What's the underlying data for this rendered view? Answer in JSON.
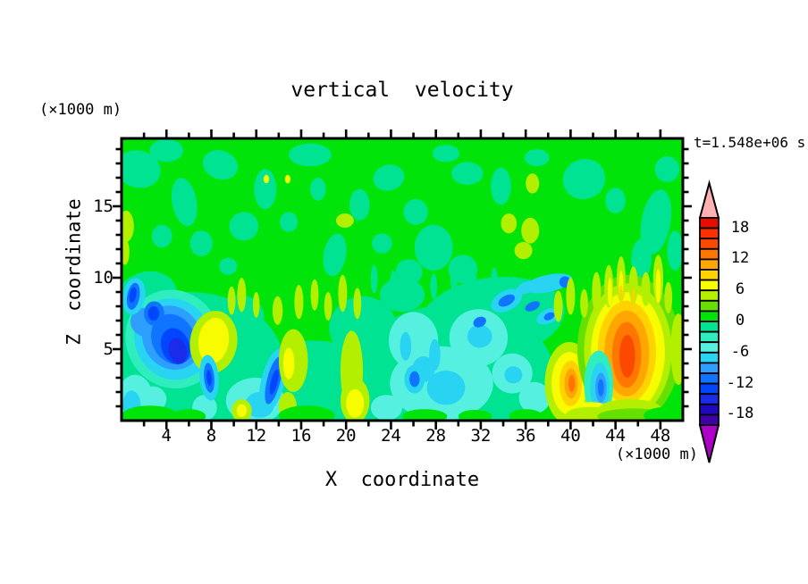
{
  "title": "vertical  velocity",
  "timestamp": "t=1.548e+06 s",
  "x_axis": {
    "label": "X  coordinate",
    "unit": "(×1000 m)",
    "range": [
      0,
      50
    ],
    "major_ticks": [
      4,
      8,
      12,
      16,
      20,
      24,
      28,
      32,
      36,
      40,
      44,
      48
    ],
    "minor_step": 2
  },
  "y_axis": {
    "label": "Z  coordinate",
    "unit": "(×1000 m)",
    "range": [
      0,
      19.75
    ],
    "major_ticks": [
      5,
      10,
      15
    ],
    "minor_step": 1
  },
  "colorbar": {
    "label_values": [
      18,
      12,
      6,
      0,
      -6,
      -12,
      -18
    ],
    "value_range": [
      -20,
      20
    ],
    "step": 2,
    "colors_top_to_bottom": [
      "#e60d00",
      "#ff3000",
      "#fb4a00",
      "#ff7600",
      "#ffa600",
      "#ffd200",
      "#f8fc00",
      "#b2ef00",
      "#66e000",
      "#00e40a",
      "#00e392",
      "#2fedbe",
      "#55f0e0",
      "#28d4f2",
      "#2f9fff",
      "#0f74ff",
      "#0046ff",
      "#1b2ce8",
      "#2008c0",
      "#3f00a8"
    ],
    "over_color": "#ffb0b0",
    "under_color": "#ae00c8"
  },
  "chart_data": {
    "type": "heatmap",
    "subtype": "filled-contour",
    "title": "vertical velocity",
    "xlabel": "X coordinate (×1000 m)",
    "ylabel": "Z coordinate (×1000 m)",
    "annotation": "t=1.548e+06 s",
    "xlim": [
      0,
      50
    ],
    "ylim": [
      0,
      19.75
    ],
    "contour_levels_min": -20,
    "contour_levels_max": 20,
    "contour_interval": 2,
    "legend_position": "right-colorbar",
    "grid": false,
    "features": [
      {
        "feature": "strong downdraft cluster",
        "x_range": [
          1,
          9
        ],
        "z_range": [
          3,
          9
        ],
        "min_w": -15
      },
      {
        "feature": "updraft cell",
        "x_range": [
          6.5,
          10
        ],
        "z_range": [
          3.5,
          7.5
        ],
        "max_w": 7
      },
      {
        "feature": "downdraft streak",
        "x_range": [
          7,
          8.5
        ],
        "z_range": [
          1.5,
          4.5
        ],
        "min_w": -11
      },
      {
        "feature": "downdraft streak",
        "x_range": [
          12.5,
          14.5
        ],
        "z_range": [
          0.5,
          5
        ],
        "min_w": -11
      },
      {
        "feature": "updraft cell",
        "x_range": [
          37.5,
          42
        ],
        "z_range": [
          0.5,
          5.5
        ],
        "max_w": 13
      },
      {
        "feature": "downdraft notch",
        "x_range": [
          41.5,
          43.5
        ],
        "z_range": [
          0.5,
          4.5
        ],
        "min_w": -10
      },
      {
        "feature": "strongest updraft cell",
        "x_range": [
          41,
          49.5
        ],
        "z_range": [
          0.5,
          10.5
        ],
        "max_w": 15
      },
      {
        "feature": "background field",
        "w_range": [
          -4,
          4
        ]
      }
    ],
    "palette": {
      "green": "#00e40a",
      "teal": "#00e392",
      "mint": "#2fedbe",
      "aqua": "#55f0e0",
      "cyan": "#28d4f2",
      "lblue": "#2f9fff",
      "blue": "#0f74ff",
      "blue2": "#0046ff",
      "dblue": "#1b2ce8",
      "green9": "#66e000",
      "chart": "#b2ef00",
      "yellow": "#f8fc00",
      "amber": "#ffd200",
      "orange": "#ffa600",
      "dorange": "#ff7600",
      "rorange": "#fb4a00"
    },
    "base_color_key": "green",
    "blobs": [
      [
        1.5,
        17.6,
        2.0,
        1.3,
        15,
        "teal"
      ],
      [
        4.0,
        18.9,
        1.5,
        0.8,
        0,
        "teal"
      ],
      [
        5.6,
        15.3,
        1.1,
        1.7,
        -10,
        "teal"
      ],
      [
        3.6,
        12.9,
        0.9,
        0.8,
        0,
        "teal"
      ],
      [
        8.8,
        17.9,
        1.6,
        1.0,
        20,
        "teal"
      ],
      [
        7.1,
        12.4,
        1.0,
        0.9,
        0,
        "teal"
      ],
      [
        10.9,
        13.6,
        1.3,
        1.0,
        0,
        "teal"
      ],
      [
        12.8,
        16.2,
        1.0,
        1.4,
        0,
        "teal"
      ],
      [
        16.8,
        18.6,
        1.9,
        0.8,
        0,
        "teal"
      ],
      [
        19.0,
        11.6,
        1.0,
        1.5,
        10,
        "teal"
      ],
      [
        21.2,
        15.1,
        0.9,
        1.1,
        0,
        "teal"
      ],
      [
        23.8,
        17.0,
        1.4,
        0.9,
        -15,
        "teal"
      ],
      [
        23.2,
        12.4,
        0.9,
        0.7,
        0,
        "teal"
      ],
      [
        27.8,
        12.1,
        1.7,
        1.6,
        0,
        "teal"
      ],
      [
        26.2,
        14.6,
        1.1,
        0.9,
        0,
        "teal"
      ],
      [
        25.6,
        10.4,
        1.2,
        0.9,
        0,
        "teal"
      ],
      [
        30.8,
        17.3,
        1.4,
        0.8,
        0,
        "teal"
      ],
      [
        33.8,
        16.4,
        0.9,
        1.3,
        0,
        "teal"
      ],
      [
        30.4,
        10.6,
        1.3,
        1.0,
        0,
        "teal"
      ],
      [
        37.0,
        18.4,
        1.1,
        0.6,
        0,
        "teal"
      ],
      [
        41.2,
        16.9,
        1.9,
        1.4,
        -20,
        "teal"
      ],
      [
        44.0,
        15.4,
        0.9,
        0.9,
        0,
        "teal"
      ],
      [
        47.6,
        13.9,
        1.3,
        2.3,
        10,
        "teal"
      ],
      [
        48.6,
        17.6,
        1.1,
        0.9,
        0,
        "teal"
      ],
      [
        46.3,
        11.3,
        0.9,
        1.4,
        0,
        "teal"
      ],
      [
        49.3,
        11.9,
        0.7,
        1.4,
        0,
        "teal"
      ],
      [
        14.9,
        13.9,
        0.8,
        0.7,
        0,
        "teal"
      ],
      [
        9.5,
        10.8,
        0.8,
        0.6,
        0,
        "teal"
      ],
      [
        17.5,
        16.2,
        0.7,
        0.8,
        0,
        "teal"
      ],
      [
        28.9,
        18.7,
        1.2,
        0.6,
        0,
        "teal"
      ],
      [
        0.4,
        13.6,
        0.7,
        1.1,
        0,
        "chart"
      ],
      [
        0.3,
        11.8,
        0.4,
        0.9,
        0,
        "chart"
      ],
      [
        19.9,
        14.0,
        0.8,
        0.5,
        0,
        "chart"
      ],
      [
        36.4,
        13.3,
        0.8,
        0.9,
        0,
        "chart"
      ],
      [
        36.6,
        16.6,
        0.6,
        0.7,
        0,
        "chart"
      ],
      [
        35.8,
        11.9,
        0.8,
        0.6,
        0,
        "chart"
      ],
      [
        34.5,
        13.8,
        0.7,
        0.7,
        0,
        "chart"
      ],
      [
        12.9,
        16.9,
        0.25,
        0.3,
        0,
        "yellow"
      ],
      [
        14.8,
        16.9,
        0.25,
        0.3,
        0,
        "yellow"
      ],
      [
        6.0,
        3.8,
        8.5,
        5.2,
        0,
        "teal"
      ],
      [
        17.0,
        2.2,
        7.0,
        3.4,
        0,
        "teal"
      ],
      [
        29.5,
        3.3,
        9.0,
        4.8,
        0,
        "teal"
      ],
      [
        33.0,
        7.2,
        6.5,
        2.8,
        -8,
        "teal"
      ],
      [
        2.2,
        8.6,
        2.8,
        1.8,
        -20,
        "teal"
      ],
      [
        21.5,
        6.5,
        3.0,
        2.2,
        0,
        "teal"
      ],
      [
        25.0,
        8.8,
        2.0,
        1.2,
        0,
        "teal"
      ],
      [
        10.5,
        7.2,
        2.2,
        1.6,
        0,
        "teal"
      ],
      [
        22.5,
        9.9,
        0.3,
        1.0,
        0,
        "teal"
      ],
      [
        24.2,
        9.5,
        0.3,
        1.0,
        0,
        "teal"
      ],
      [
        26.0,
        10.0,
        0.3,
        1.0,
        0,
        "teal"
      ],
      [
        27.8,
        9.4,
        0.3,
        0.9,
        0,
        "teal"
      ],
      [
        29.6,
        9.9,
        0.3,
        1.0,
        0,
        "teal"
      ],
      [
        31.4,
        9.4,
        0.3,
        0.9,
        0,
        "teal"
      ],
      [
        33.2,
        9.8,
        0.3,
        0.9,
        0,
        "teal"
      ],
      [
        35.0,
        9.3,
        0.3,
        0.8,
        0,
        "teal"
      ],
      [
        9.8,
        8.4,
        0.35,
        1.0,
        0,
        "chart"
      ],
      [
        10.7,
        8.8,
        0.4,
        1.2,
        0,
        "chart"
      ],
      [
        12.0,
        8.1,
        0.3,
        0.9,
        0,
        "chart"
      ],
      [
        13.9,
        7.7,
        0.45,
        1.0,
        0,
        "chart"
      ],
      [
        15.8,
        8.3,
        0.4,
        1.2,
        0,
        "chart"
      ],
      [
        17.2,
        8.8,
        0.35,
        1.1,
        0,
        "chart"
      ],
      [
        18.4,
        8.0,
        0.35,
        1.0,
        0,
        "chart"
      ],
      [
        19.7,
        8.9,
        0.4,
        1.3,
        0,
        "chart"
      ],
      [
        21.0,
        8.2,
        0.35,
        1.1,
        0,
        "chart"
      ],
      [
        28.5,
        2.6,
        4.6,
        2.6,
        0,
        "aqua"
      ],
      [
        31.8,
        5.8,
        2.6,
        2.0,
        0,
        "aqua"
      ],
      [
        26.0,
        5.6,
        2.2,
        2.0,
        0,
        "aqua"
      ],
      [
        11.9,
        1.4,
        2.6,
        1.6,
        0,
        "aqua"
      ],
      [
        1.2,
        1.5,
        1.6,
        1.7,
        0,
        "aqua"
      ],
      [
        34.8,
        3.3,
        1.8,
        1.4,
        0,
        "aqua"
      ],
      [
        2.8,
        1.5,
        1.2,
        0.9,
        0,
        "aqua"
      ],
      [
        7.4,
        0.9,
        1.1,
        0.9,
        0,
        "aqua"
      ],
      [
        23.6,
        0.9,
        1.4,
        0.9,
        0,
        "aqua"
      ],
      [
        36.8,
        1.6,
        1.4,
        1.1,
        0,
        "aqua"
      ],
      [
        28.9,
        2.3,
        1.7,
        1.2,
        0,
        "cyan"
      ],
      [
        26.9,
        3.6,
        1.0,
        0.9,
        0,
        "cyan"
      ],
      [
        12.3,
        1.1,
        1.3,
        0.9,
        0,
        "cyan"
      ],
      [
        0.9,
        1.1,
        0.8,
        1.0,
        0,
        "cyan"
      ],
      [
        31.9,
        5.9,
        1.1,
        0.8,
        0,
        "cyan"
      ],
      [
        34.9,
        3.2,
        0.8,
        0.6,
        0,
        "cyan"
      ],
      [
        25.3,
        5.2,
        0.5,
        1.0,
        0,
        "cyan"
      ],
      [
        27.9,
        4.6,
        0.5,
        1.1,
        0,
        "cyan"
      ],
      [
        26.1,
        2.9,
        0.9,
        1.0,
        0,
        "cyan"
      ],
      [
        26.1,
        2.9,
        0.45,
        0.55,
        0,
        "blue"
      ],
      [
        38.0,
        9.6,
        2.2,
        0.6,
        -12,
        "cyan"
      ],
      [
        34.3,
        8.4,
        1.5,
        0.7,
        -28,
        "cyan"
      ],
      [
        34.3,
        8.4,
        0.8,
        0.35,
        -28,
        "blue"
      ],
      [
        36.6,
        8.0,
        0.7,
        0.3,
        -25,
        "blue"
      ],
      [
        38.0,
        7.3,
        1.1,
        0.5,
        -25,
        "cyan"
      ],
      [
        38.1,
        7.3,
        0.5,
        0.25,
        -25,
        "blue"
      ],
      [
        39.5,
        9.7,
        0.5,
        0.4,
        0,
        "blue"
      ],
      [
        36.0,
        9.3,
        0.9,
        0.4,
        -25,
        "cyan"
      ],
      [
        31.9,
        6.9,
        0.6,
        0.35,
        -25,
        "blue"
      ],
      [
        4.6,
        5.7,
        4.2,
        3.5,
        -28,
        "mint"
      ],
      [
        4.6,
        5.7,
        3.4,
        2.9,
        -28,
        "cyan"
      ],
      [
        4.5,
        5.8,
        2.6,
        2.3,
        -28,
        "lblue"
      ],
      [
        2.0,
        6.9,
        1.2,
        1.0,
        -20,
        "lblue"
      ],
      [
        4.6,
        5.7,
        1.9,
        1.8,
        -25,
        "blue"
      ],
      [
        4.8,
        5.2,
        1.25,
        1.3,
        -20,
        "blue2"
      ],
      [
        5.0,
        4.9,
        0.8,
        0.9,
        -15,
        "dblue"
      ],
      [
        2.9,
        7.5,
        0.9,
        0.85,
        0,
        "blue"
      ],
      [
        2.85,
        7.5,
        0.5,
        0.5,
        0,
        "blue2"
      ],
      [
        1.1,
        8.7,
        1.0,
        1.3,
        10,
        "cyan"
      ],
      [
        1.05,
        8.7,
        0.55,
        0.95,
        10,
        "blue"
      ],
      [
        1.0,
        8.8,
        0.3,
        0.55,
        10,
        "blue2"
      ],
      [
        8.2,
        5.5,
        2.1,
        2.2,
        8,
        "chart"
      ],
      [
        8.2,
        5.6,
        1.35,
        1.6,
        8,
        "yellow"
      ],
      [
        7.8,
        3.0,
        0.85,
        1.6,
        -5,
        "cyan"
      ],
      [
        7.8,
        3.0,
        0.45,
        1.05,
        -5,
        "blue"
      ],
      [
        7.8,
        3.0,
        0.22,
        0.55,
        -5,
        "blue2"
      ],
      [
        10.7,
        0.7,
        0.9,
        0.8,
        0,
        "chart"
      ],
      [
        10.7,
        0.7,
        0.45,
        0.45,
        0,
        "yellow"
      ],
      [
        13.5,
        2.8,
        1.05,
        2.3,
        14,
        "cyan"
      ],
      [
        13.55,
        2.8,
        0.6,
        1.7,
        14,
        "blue"
      ],
      [
        13.6,
        2.7,
        0.3,
        0.9,
        14,
        "blue2"
      ],
      [
        15.3,
        4.2,
        1.3,
        2.2,
        0,
        "chart"
      ],
      [
        14.9,
        4.0,
        0.5,
        1.1,
        0,
        "yellow"
      ],
      [
        14.8,
        1.0,
        0.8,
        1.0,
        0,
        "chart"
      ],
      [
        20.5,
        3.5,
        1.0,
        2.8,
        0,
        "chart"
      ],
      [
        20.8,
        1.4,
        1.3,
        1.6,
        0,
        "chart"
      ],
      [
        20.8,
        1.2,
        0.8,
        1.0,
        0,
        "yellow"
      ],
      [
        39.9,
        2.6,
        2.2,
        2.9,
        0,
        "chart"
      ],
      [
        39.9,
        2.6,
        1.6,
        2.2,
        0,
        "yellow"
      ],
      [
        40.0,
        2.6,
        1.0,
        1.6,
        0,
        "amber"
      ],
      [
        40.05,
        2.6,
        0.6,
        1.05,
        0,
        "orange"
      ],
      [
        40.1,
        2.6,
        0.3,
        0.6,
        0,
        "dorange"
      ],
      [
        45.2,
        5.0,
        4.6,
        5.2,
        0,
        "green9"
      ],
      [
        45.1,
        4.9,
        3.9,
        4.7,
        0,
        "chart"
      ],
      [
        45.1,
        4.8,
        3.3,
        4.2,
        0,
        "yellow"
      ],
      [
        45.0,
        4.8,
        2.6,
        3.6,
        0,
        "amber"
      ],
      [
        45.0,
        4.7,
        2.0,
        3.0,
        0,
        "orange"
      ],
      [
        45.0,
        4.6,
        1.3,
        2.3,
        0,
        "dorange"
      ],
      [
        45.05,
        4.5,
        0.7,
        1.5,
        0,
        "rorange"
      ],
      [
        42.5,
        2.5,
        1.3,
        2.4,
        0,
        "mint"
      ],
      [
        42.6,
        2.3,
        0.85,
        1.75,
        0,
        "cyan"
      ],
      [
        42.7,
        2.3,
        0.5,
        1.05,
        0,
        "lblue"
      ],
      [
        42.7,
        2.3,
        0.27,
        0.6,
        0,
        "blue"
      ],
      [
        41.8,
        0.7,
        1.8,
        0.6,
        0,
        "yellow"
      ],
      [
        41.8,
        0.45,
        2.2,
        0.5,
        0,
        "chart"
      ],
      [
        45.3,
        0.8,
        2.8,
        0.7,
        0,
        "chart"
      ],
      [
        45.6,
        0.3,
        3.2,
        0.55,
        0,
        "green9"
      ],
      [
        38.9,
        8.0,
        0.4,
        1.1,
        0,
        "chart"
      ],
      [
        40.0,
        8.7,
        0.4,
        1.3,
        0,
        "chart"
      ],
      [
        41.2,
        8.2,
        0.35,
        1.0,
        0,
        "chart"
      ],
      [
        42.3,
        9.0,
        0.4,
        1.4,
        0,
        "chart"
      ],
      [
        43.4,
        9.4,
        0.4,
        1.5,
        0,
        "chart"
      ],
      [
        44.5,
        9.9,
        0.4,
        1.6,
        0,
        "chart"
      ],
      [
        45.6,
        9.5,
        0.4,
        1.3,
        0,
        "chart"
      ],
      [
        46.7,
        9.2,
        0.4,
        1.2,
        0,
        "chart"
      ],
      [
        47.8,
        9.9,
        0.45,
        1.7,
        0,
        "chart"
      ],
      [
        48.7,
        8.6,
        0.35,
        1.1,
        0,
        "chart"
      ],
      [
        43.5,
        9.0,
        0.2,
        1.0,
        0,
        "yellow"
      ],
      [
        44.5,
        9.4,
        0.2,
        1.1,
        0,
        "yellow"
      ],
      [
        47.8,
        9.4,
        0.22,
        1.2,
        0,
        "yellow"
      ],
      [
        44.5,
        8.9,
        0.15,
        0.6,
        0,
        "amber"
      ],
      [
        45.6,
        8.8,
        0.13,
        0.5,
        0,
        "amber"
      ],
      [
        49.6,
        5.0,
        0.7,
        2.5,
        0,
        "chart"
      ],
      [
        2.5,
        0.35,
        2.5,
        0.7,
        0,
        "green"
      ],
      [
        6.0,
        0.3,
        1.5,
        0.5,
        0,
        "green"
      ],
      [
        16.5,
        0.35,
        2.5,
        0.7,
        0,
        "green"
      ],
      [
        27.0,
        0.3,
        2.0,
        0.5,
        0,
        "green"
      ],
      [
        31.5,
        0.3,
        1.5,
        0.45,
        0,
        "green"
      ],
      [
        36.0,
        0.3,
        1.5,
        0.5,
        0,
        "green"
      ],
      [
        48.5,
        0.35,
        2.0,
        0.6,
        0,
        "green"
      ]
    ]
  }
}
